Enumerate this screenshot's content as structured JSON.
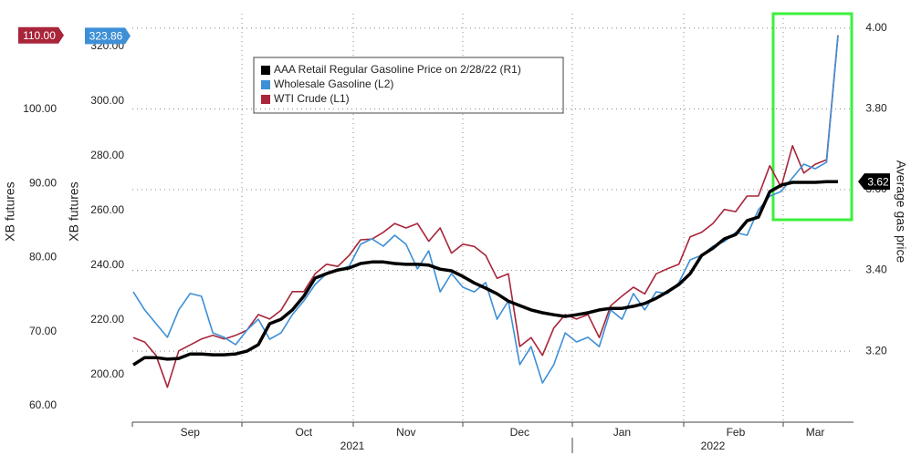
{
  "chart_data": {
    "type": "line",
    "y_label": "XB futures",
    "y_xb_label": "XB futures",
    "y2_label": "Average gas price",
    "categories": [
      null,
      null,
      null,
      null,
      null,
      "Sep",
      null,
      null,
      null,
      null,
      null,
      null,
      null,
      null,
      null,
      "Oct",
      null,
      null,
      null,
      null,
      null,
      null,
      null,
      null,
      "Nov",
      null,
      null,
      null,
      null,
      null,
      null,
      null,
      null,
      null,
      "Dec",
      null,
      null,
      null,
      null,
      null,
      null,
      null,
      null,
      "Jan",
      null,
      null,
      null,
      null,
      null,
      null,
      null,
      null,
      null,
      "Feb",
      null,
      null,
      null,
      null,
      null,
      null,
      "Mar",
      null,
      null
    ],
    "years": [
      "2021",
      "2022"
    ],
    "series": [
      {
        "name": "AAA Retail Regular Gasoline Price on 2/28/22 (R1)",
        "color": "#000000",
        "axis": "y2",
        "last_label": "3.62",
        "values": [
          3.166,
          3.184,
          3.184,
          3.18,
          3.182,
          3.193,
          3.193,
          3.191,
          3.191,
          3.193,
          3.2,
          3.216,
          3.268,
          3.279,
          3.302,
          3.336,
          3.381,
          3.392,
          3.401,
          3.406,
          3.417,
          3.421,
          3.421,
          3.417,
          3.415,
          3.415,
          3.413,
          3.403,
          3.399,
          3.385,
          3.369,
          3.356,
          3.342,
          3.324,
          3.313,
          3.302,
          3.295,
          3.29,
          3.286,
          3.29,
          3.295,
          3.302,
          3.306,
          3.306,
          3.311,
          3.318,
          3.331,
          3.347,
          3.365,
          3.392,
          3.437,
          3.455,
          3.478,
          3.489,
          3.523,
          3.532,
          3.595,
          3.611,
          3.618,
          3.618,
          3.618,
          3.62,
          3.62
        ]
      },
      {
        "name": "Wholesale Gasoline (L2)",
        "color": "#3d8fd6",
        "axis": "y_xb",
        "last_label": "323.86",
        "values": [
          230.3,
          223.7,
          218.7,
          213.7,
          223.7,
          229.7,
          228.7,
          215.3,
          213.7,
          211,
          216.3,
          220.3,
          213,
          215.3,
          222,
          227,
          233,
          237,
          238.3,
          239.7,
          247.7,
          249.7,
          247,
          251,
          247.7,
          238.7,
          245.3,
          230.3,
          237,
          232,
          230.3,
          233.7,
          220.3,
          227,
          203.7,
          210.3,
          197,
          203.7,
          215.3,
          212,
          213.7,
          210.3,
          223.7,
          220.3,
          229.7,
          223.7,
          230.3,
          229.7,
          233.7,
          242,
          243.7,
          247,
          248.7,
          252,
          251,
          260.3,
          265.3,
          267,
          272,
          277,
          275.3,
          277.7,
          323.86
        ]
      },
      {
        "name": "WTI Crude (L1)",
        "color": "#a8253a",
        "axis": "y",
        "last_label": "110.00",
        "values": [
          69.2,
          68.6,
          66.8,
          62.5,
          67.4,
          68.2,
          69,
          69.5,
          69,
          69.5,
          70.2,
          72.3,
          71.7,
          72.9,
          75.4,
          75.4,
          77.8,
          79.1,
          78.8,
          80.3,
          82.4,
          82.5,
          83.4,
          84.6,
          84,
          84.6,
          82.2,
          84,
          80.6,
          81.8,
          81.5,
          80.3,
          77.2,
          77.8,
          68,
          69.2,
          66.8,
          70.5,
          72.3,
          71.7,
          72.3,
          69.2,
          73.5,
          74.8,
          76,
          75.1,
          77.8,
          78.5,
          79.1,
          82.8,
          83.4,
          84.6,
          86.5,
          86.2,
          88.3,
          88.3,
          92.4,
          89.5,
          95.1,
          91.4,
          92.6,
          93.2,
          110
        ]
      }
    ],
    "ylim": [
      57.78,
      112.92
    ],
    "yticks": [
      {
        "value": 60,
        "label": "60.00"
      },
      {
        "value": 70,
        "label": "70.00"
      },
      {
        "value": 80,
        "label": "80.00"
      },
      {
        "value": 90,
        "label": "90.00"
      },
      {
        "value": 100,
        "label": "100.00"
      }
    ],
    "ylim_xb": [
      182.67,
      332
    ],
    "yticks_xb": [
      {
        "value": 200,
        "label": "200.00"
      },
      {
        "value": 220,
        "label": "220.00"
      },
      {
        "value": 240,
        "label": "240.00"
      },
      {
        "value": 260,
        "label": "260.00"
      },
      {
        "value": 280,
        "label": "280.00"
      },
      {
        "value": 300,
        "label": "300.00"
      },
      {
        "value": 320,
        "label": "320.00"
      }
    ],
    "y2lim": [
      3.024,
      4.036
    ],
    "y2ticks": [
      {
        "value": 3.2,
        "label": "3.20"
      },
      {
        "value": 3.4,
        "label": "3.40"
      },
      {
        "value": 3.6,
        "label": "3.60"
      },
      {
        "value": 3.8,
        "label": "3.80"
      },
      {
        "value": 4.0,
        "label": "4.00"
      }
    ],
    "grid": true,
    "legend": "top"
  }
}
